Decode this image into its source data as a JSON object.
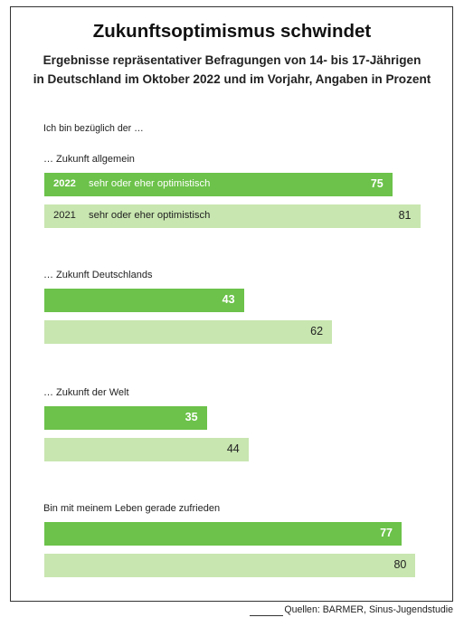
{
  "chart_data": {
    "type": "bar",
    "orientation": "horizontal",
    "title": "Zukunftsoptimismus schwindet",
    "subtitle_line1": "Ergebnisse repräsentativer Befragungen von 14- bis 17-Jährigen",
    "subtitle_line2": "in Deutschland im Oktober 2022 und im Vorjahr, Angaben in Prozent",
    "intro": "Ich bin bezüglich der …",
    "series_label": "sehr oder eher optimistisch",
    "categories": [
      "… Zukunft allgemein",
      "… Zukunft Deutschlands",
      "… Zukunft der Welt",
      "Bin mit meinem Leben gerade zufrieden"
    ],
    "series": [
      {
        "name": "2022",
        "color": "#6cc24a",
        "values": [
          75,
          43,
          35,
          77
        ]
      },
      {
        "name": "2021",
        "color": "#c8e6b0",
        "values": [
          81,
          62,
          44,
          80
        ]
      }
    ],
    "ylim": [
      0,
      100
    ],
    "source": "Quellen: BARMER, Sinus-Jugendstudie"
  }
}
